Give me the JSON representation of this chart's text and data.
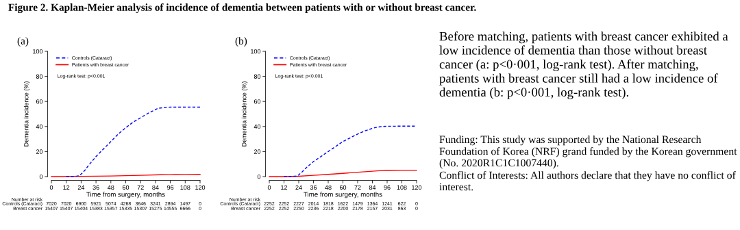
{
  "chart_data": [
    {
      "type": "line",
      "title": "Figure 2. Kaplan-Meier analysis of incidence of dementia between patients with or without breast cancer.",
      "subtitle": "(a)",
      "xlabel": "Time from surgery, months",
      "ylabel": "Dementia incidence (%)",
      "series": [
        {
          "name": "Controls (Cataract)",
          "color": "#0000ff",
          "line_style": "dashed",
          "x": [
            12,
            18,
            21,
            23,
            27,
            30,
            36,
            42,
            48,
            54,
            60,
            66,
            72,
            78,
            84,
            86,
            90,
            96,
            108,
            120
          ],
          "values": [
            0,
            0.2,
            0.5,
            1,
            5,
            9,
            16,
            22,
            28,
            34,
            39,
            43.5,
            47,
            50.5,
            53.5,
            54.5,
            55,
            55.5,
            55.5,
            55.5
          ]
        },
        {
          "name": "Patients with breast cancer",
          "color": "#ff0000",
          "line_style": "solid",
          "x": [
            0,
            24,
            48,
            72,
            88,
            96,
            108,
            120
          ],
          "values": [
            0,
            0.2,
            0.5,
            1,
            1.5,
            1.6,
            1.7,
            1.8
          ]
        }
      ],
      "xlim": [
        0,
        120
      ],
      "xticks": [
        0,
        12,
        24,
        36,
        48,
        60,
        72,
        84,
        96,
        108,
        120
      ],
      "ylim": [
        0,
        100
      ],
      "yticks": [
        0,
        20,
        40,
        60,
        80,
        100
      ],
      "grid": false,
      "legend": "top left",
      "annotations": [
        "Log-rank test: p<0.001",
        "Number at risk",
        "Controls (Cataract)",
        "7020",
        "7020",
        "6900",
        "5921",
        "5074",
        "4268",
        "3646",
        "3241",
        "2894",
        "1497",
        "0",
        "Breast cancer",
        "15407",
        "15407",
        "15404",
        "15383",
        "15357",
        "15335",
        "15307",
        "15275",
        "14555",
        "6666",
        "0"
      ]
    },
    {
      "type": "line",
      "subtitle": "(b)",
      "xlabel": "Time from surgery, months",
      "ylabel": "Dementia incidence (%)",
      "series": [
        {
          "name": "Controls (Cataract)",
          "color": "#0000ff",
          "line_style": "dashed",
          "x": [
            12,
            18,
            21,
            23,
            27,
            30,
            36,
            42,
            48,
            54,
            60,
            66,
            72,
            78,
            84,
            88,
            92,
            96,
            108,
            120
          ],
          "values": [
            0,
            0.2,
            0.3,
            0.5,
            4,
            7,
            12,
            16,
            20,
            24,
            28,
            31,
            34,
            36.5,
            38.5,
            39.5,
            40,
            40.2,
            40.3,
            40.3
          ]
        },
        {
          "name": "Patients with breast cancer",
          "color": "#ff0000",
          "line_style": "solid",
          "x": [
            0,
            12,
            24,
            36,
            48,
            60,
            72,
            84,
            90,
            96,
            108,
            120
          ],
          "values": [
            0,
            0,
            0.3,
            1,
            1.8,
            2.6,
            3.5,
            4.3,
            4.7,
            4.9,
            5,
            5
          ]
        }
      ],
      "xlim": [
        0,
        120
      ],
      "xticks": [
        0,
        12,
        24,
        36,
        48,
        60,
        72,
        84,
        96,
        108,
        120
      ],
      "ylim": [
        0,
        100
      ],
      "yticks": [
        0,
        20,
        40,
        60,
        80,
        100
      ],
      "grid": false,
      "legend": "top left",
      "annotations": [
        "Log-rank test: p<0.001",
        "Number at risk",
        "Controls (Cataract)",
        "2252",
        "2252",
        "2227",
        "2014",
        "1818",
        "1622",
        "1479",
        "1364",
        "1241",
        "622",
        "0",
        "Breast cancer",
        "2252",
        "2252",
        "2250",
        "2236",
        "2218",
        "2200",
        "2178",
        "2157",
        "2031",
        "863",
        "0"
      ]
    },
    {
      "type": "other",
      "annotations": [
        "Before matching, patients with breast cancer exhibited a low incidence of dementia than those without breast cancer (a: p<0·001, log-rank test). After matching, patients with breast cancer still had a low incidence of dementia (b: p<0·001, log-rank test).",
        "Funding: This study was supported by the National Research Foundation of Korea (NRF) grand funded by the Korean government (No. 2020R1C1C1007440).",
        "Conflict of Interests: All authors declare that they have no conflict of interest."
      ]
    }
  ]
}
